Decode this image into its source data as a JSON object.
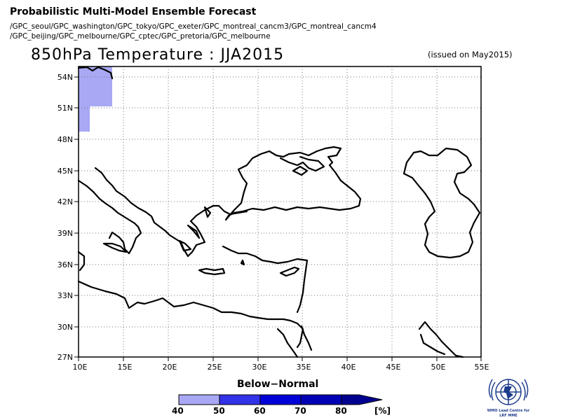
{
  "header": {
    "title": "Probabilistic Multi-Model Ensemble Forecast",
    "models_line1": "/GPC_seoul/GPC_washington/GPC_tokyo/GPC_exeter/GPC_montreal_cancm3/GPC_montreal_cancm4",
    "models_line2": "/GPC_beijing/GPC_melbourne/GPC_cptec/GPC_pretoria/GPC_melbourne"
  },
  "map": {
    "title": "850hPa Temperature : JJA2015",
    "issued": "(issued on May2015)",
    "lat_labels": [
      "54N",
      "51N",
      "48N",
      "45N",
      "42N",
      "39N",
      "36N",
      "33N",
      "30N",
      "27N"
    ],
    "lon_labels": [
      "10E",
      "15E",
      "20E",
      "25E",
      "30E",
      "35E",
      "40E",
      "45E",
      "50E",
      "55E"
    ],
    "shade_color": "#a8a8f4",
    "coast_color": "#000000"
  },
  "legend": {
    "title": "Below−Normal",
    "labels": [
      "40",
      "50",
      "60",
      "70",
      "80"
    ],
    "unit": "[%]",
    "colors": [
      "#a8a8f4",
      "#3232e8",
      "#0000d8",
      "#0000b4",
      "#000090"
    ]
  },
  "logo": {
    "icon": "wmo-emblem-icon",
    "line1": "WMO Lead Centre for",
    "line2": "LRF MME"
  }
}
